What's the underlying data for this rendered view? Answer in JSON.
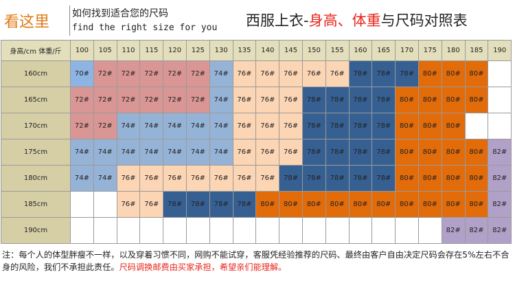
{
  "header": {
    "brand": "看这里",
    "subtitle_cn": "如何找到适合您的尺码",
    "subtitle_en": "find the right size for you",
    "title_part1": "西服上衣-",
    "title_highlight": "身高、体重",
    "title_part2": "与尺码对照表"
  },
  "table": {
    "corner_label": "身高/cm  体重/斤",
    "weights": [
      "100",
      "105",
      "110",
      "115",
      "120",
      "125",
      "130",
      "135",
      "140",
      "145",
      "150",
      "155",
      "160",
      "165",
      "170",
      "175",
      "180",
      "185",
      "190"
    ],
    "rows": [
      {
        "height": "160cm",
        "cells": [
          "70#",
          "72#",
          "72#",
          "72#",
          "72#",
          "72#",
          "74#",
          "76#",
          "76#",
          "76#",
          "76#",
          "76#",
          "78#",
          "78#",
          "78#",
          "80#",
          "80#",
          "80#",
          ""
        ]
      },
      {
        "height": "165cm",
        "cells": [
          "72#",
          "72#",
          "72#",
          "72#",
          "72#",
          "72#",
          "74#",
          "76#",
          "76#",
          "76#",
          "78#",
          "78#",
          "78#",
          "78#",
          "80#",
          "80#",
          "80#",
          "80#",
          ""
        ]
      },
      {
        "height": "170cm",
        "cells": [
          "72#",
          "72#",
          "74#",
          "74#",
          "74#",
          "74#",
          "74#",
          "76#",
          "76#",
          "76#",
          "78#",
          "78#",
          "78#",
          "78#",
          "80#",
          "80#",
          "80#",
          "",
          ""
        ]
      },
      {
        "height": "175cm",
        "cells": [
          "74#",
          "74#",
          "74#",
          "74#",
          "74#",
          "74#",
          "74#",
          "76#",
          "76#",
          "76#",
          "78#",
          "78#",
          "78#",
          "78#",
          "80#",
          "80#",
          "80#",
          "80#",
          "82#"
        ]
      },
      {
        "height": "180cm",
        "cells": [
          "74#",
          "74#",
          "76#",
          "76#",
          "76#",
          "76#",
          "76#",
          "76#",
          "76#",
          "78#",
          "78#",
          "78#",
          "78#",
          "78#",
          "80#",
          "80#",
          "80#",
          "80#",
          "82#"
        ]
      },
      {
        "height": "185cm",
        "cells": [
          "",
          "",
          "76#",
          "76#",
          "78#",
          "78#",
          "78#",
          "78#",
          "80#",
          "80#",
          "80#",
          "80#",
          "80#",
          "80#",
          "80#",
          "80#",
          "80#",
          "80#",
          "82#"
        ]
      },
      {
        "height": "190cm",
        "cells": [
          "",
          "",
          "",
          "",
          "",
          "",
          "",
          "",
          "",
          "",
          "",
          "",
          "",
          "",
          "",
          "",
          "82#",
          "82#",
          "82#"
        ]
      }
    ]
  },
  "footer": {
    "note_text": "注：每个人的体型胖瘦不一样，以及穿着习惯不同，网购不能试穿，客服凭经验推荐的尺码、最终由客户自由决定尺码会存在5%左右不合身的风险，我们不承担此责任。",
    "note_red": "尺码调换邮费由买家承担，希望亲们能理解。"
  },
  "colors": {
    "70#": "#8eb4e3",
    "72#": "#d99694",
    "74#": "#95b3d7",
    "76#": "#fcd5b4",
    "78#": "#366092",
    "80#": "#e26b0a",
    "82#": "#b1a0c7",
    "header_row": "#e3dfbc",
    "row_label": "#d6cfa6",
    "title_highlight": "#e8251b",
    "brand": "#e07a17"
  }
}
